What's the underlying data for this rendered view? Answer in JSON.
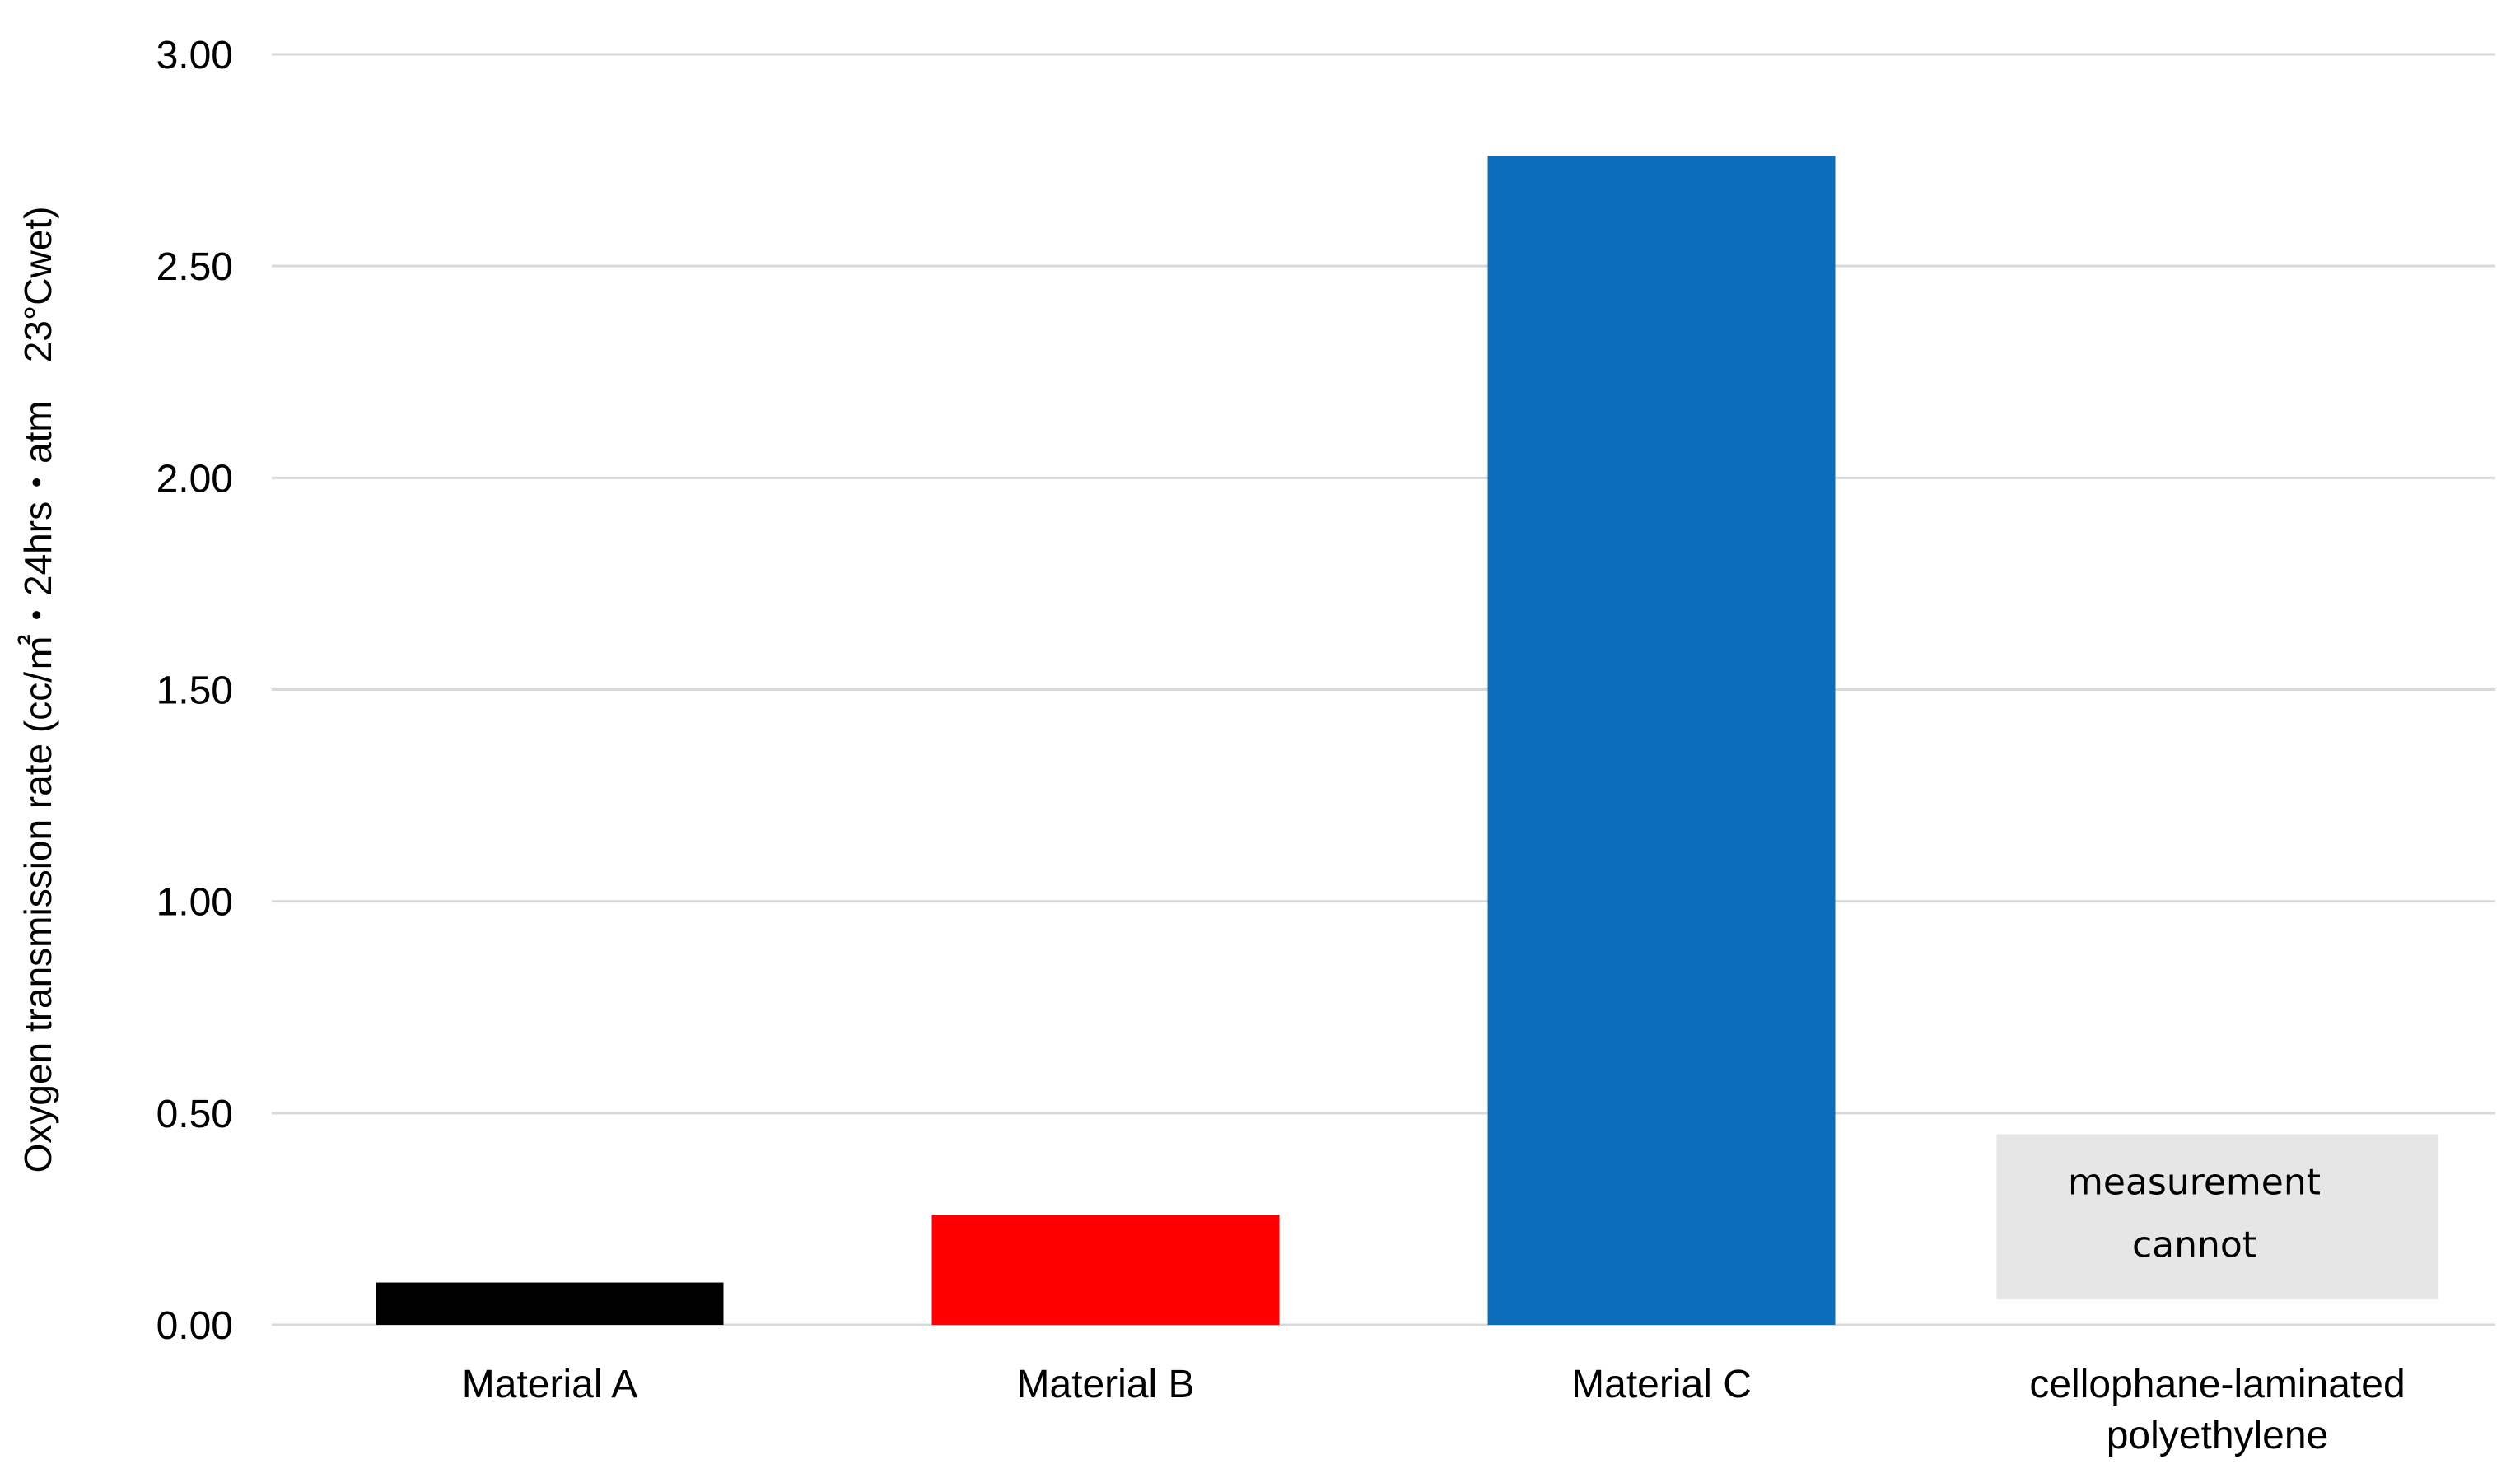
{
  "chart_data": {
    "type": "bar",
    "title": "",
    "xlabel": "",
    "ylabel": "Oxygen transmission rate (cc/㎡・24hrs・atm　23°Cwet)",
    "ylim": [
      0,
      3.0
    ],
    "yticks": [
      "0.00",
      "0.50",
      "1.00",
      "1.50",
      "2.00",
      "2.50",
      "3.00"
    ],
    "grid": true,
    "categories": [
      [
        "Material A"
      ],
      [
        "Material B"
      ],
      [
        "Material C"
      ],
      [
        "cellophane-laminated",
        "polyethylene"
      ]
    ],
    "values": [
      0.1,
      0.26,
      2.76,
      null
    ],
    "colors": [
      "#000000",
      "#ff0000",
      "#0a6ebd",
      "#e6e6e6"
    ],
    "annotations": [
      {
        "category_index": 3,
        "lines": [
          "measurement",
          "cannot"
        ],
        "box_range": [
          0.06,
          0.45
        ]
      }
    ]
  }
}
